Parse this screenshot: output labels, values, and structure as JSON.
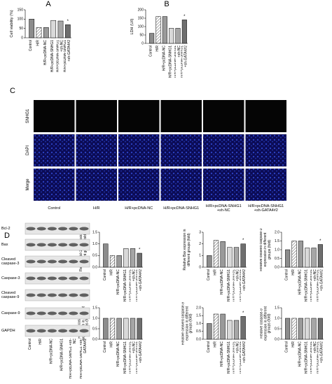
{
  "chart_data": [
    {
      "type": "bar",
      "panel_label": "A",
      "ylabel": "Cell viability (%)",
      "categories": [
        "Control",
        "H/R",
        "H/R+pcDNA-NC",
        "H/R+pcDNA-SNHG1",
        "H/R+pcDNA-SNHG1 +sh-NC",
        "H/R+pcDNA-SNHG1 +sh-GATA4#2"
      ],
      "values": [
        100,
        55,
        55,
        93,
        90,
        70
      ],
      "colors": [
        "#8c8c8c",
        "#ffffff",
        "#9a9a9a",
        "#d9d9d9",
        "#a6a6a6",
        "#6e6e6e"
      ],
      "hatch": [
        false,
        true,
        false,
        false,
        false,
        false
      ],
      "ylim": [
        0,
        150
      ],
      "yticks": [
        0,
        50,
        100,
        150
      ],
      "significance": [
        null,
        null,
        null,
        null,
        null,
        "*"
      ]
    },
    {
      "type": "bar",
      "panel_label": "B",
      "ylabel": "LDH (U/l)",
      "categories": [
        "Control",
        "H/R",
        "H/R+pcDNA-NC",
        "H/R+pcDNA-SNHG1",
        "H/R+pcDNA-SNHG1 +sh-NC",
        "H/R+pcDNA-SNHG1 +sh-GATA4#2"
      ],
      "values": [
        60,
        160,
        160,
        90,
        90,
        140
      ],
      "colors": [
        "#8c8c8c",
        "#ffffff",
        "#9a9a9a",
        "#d9d9d9",
        "#a6a6a6",
        "#6e6e6e"
      ],
      "hatch": [
        false,
        true,
        false,
        false,
        false,
        false
      ],
      "ylim": [
        0,
        200
      ],
      "yticks": [
        0,
        50,
        100,
        150,
        200
      ],
      "significance": [
        null,
        null,
        null,
        null,
        null,
        "*"
      ]
    },
    {
      "type": "bar",
      "ylabel": "Relative Bcl-2 expression in different groups (fold)",
      "categories": [
        "Control",
        "H/R",
        "H/R+pcDNA-NC",
        "H/R+pcDNA-SNHG1",
        "H/R+pcDNA-SNHG1 +sh-NC",
        "H/R+pcDNA-SNHG1 +sh-GATA4#2"
      ],
      "values": [
        1.0,
        0.5,
        0.5,
        0.8,
        0.8,
        0.6
      ],
      "colors": [
        "#8c8c8c",
        "#ffffff",
        "#9a9a9a",
        "#d9d9d9",
        "#a6a6a6",
        "#6e6e6e"
      ],
      "hatch": [
        false,
        true,
        false,
        false,
        false,
        false
      ],
      "ylim": [
        0,
        1.5
      ],
      "yticks": [
        {
          "value": 0,
          "label": "0.0"
        },
        0.5,
        {
          "value": 1,
          "label": "1.0"
        },
        1.5
      ],
      "significance": [
        null,
        null,
        null,
        null,
        null,
        "*"
      ]
    },
    {
      "type": "bar",
      "ylabel": "Relative Bax expression in different groups (fold)",
      "categories": [
        "Control",
        "H/R",
        "H/R+pcDNA-NC",
        "H/R+pcDNA-SNHG1",
        "H/R+pcDNA-SNHG1 +sh-NC",
        "H/R+pcDNA-SNHG1 +sh-GATA4#2"
      ],
      "values": [
        1.0,
        2.3,
        2.2,
        1.7,
        1.7,
        2.0
      ],
      "colors": [
        "#8c8c8c",
        "#ffffff",
        "#9a9a9a",
        "#d9d9d9",
        "#a6a6a6",
        "#6e6e6e"
      ],
      "hatch": [
        false,
        true,
        false,
        false,
        false,
        false
      ],
      "ylim": [
        0,
        3
      ],
      "yticks": [
        0,
        1,
        2,
        3
      ],
      "significance": [
        null,
        null,
        null,
        null,
        null,
        "*"
      ]
    },
    {
      "type": "bar",
      "ylabel": "Relative cleaved caspase-3 expression in different groups (fold)",
      "categories": [
        "Control",
        "H/R",
        "H/R+pcDNA-NC",
        "H/R+pcDNA-SNHG1",
        "H/R+pcDNA-SNHG1 +sh-NC",
        "H/R+pcDNA-SNHG1 +sh-GATA4#2"
      ],
      "values": [
        1.0,
        1.5,
        1.5,
        1.1,
        1.1,
        1.3
      ],
      "colors": [
        "#8c8c8c",
        "#ffffff",
        "#9a9a9a",
        "#d9d9d9",
        "#a6a6a6",
        "#6e6e6e"
      ],
      "hatch": [
        false,
        true,
        false,
        false,
        false,
        false
      ],
      "ylim": [
        0,
        2
      ],
      "yticks": [
        {
          "value": 0,
          "label": "0.0"
        },
        0.5,
        {
          "value": 1,
          "label": "1.0"
        },
        1.5,
        {
          "value": 2,
          "label": "2.0"
        }
      ],
      "significance": [
        null,
        null,
        null,
        null,
        null,
        "*"
      ]
    },
    {
      "type": "bar",
      "ylabel": "Relative caspase-3 expression in different groups (fold)",
      "categories": [
        "Control",
        "H/R",
        "H/R+pcDNA-NC",
        "H/R+pcDNA-SNHG1",
        "H/R+pcDNA-SNHG1 +sh-NC",
        "H/R+pcDNA-SNHG1 +sh-GATA4#2"
      ],
      "values": [
        1.0,
        1.0,
        1.0,
        1.0,
        1.0,
        1.0
      ],
      "colors": [
        "#8c8c8c",
        "#ffffff",
        "#9a9a9a",
        "#d9d9d9",
        "#a6a6a6",
        "#6e6e6e"
      ],
      "hatch": [
        false,
        true,
        false,
        false,
        false,
        false
      ],
      "ylim": [
        0,
        1.5
      ],
      "yticks": [
        {
          "value": 0,
          "label": "0.0"
        },
        0.5,
        {
          "value": 1,
          "label": "1.0"
        },
        1.5
      ]
    },
    {
      "type": "bar",
      "ylabel": "Relative cleaved caspase-9 expression in different groups (fold)",
      "categories": [
        "Control",
        "H/R",
        "H/R+pcDNA-NC",
        "H/R+pcDNA-SNHG1",
        "H/R+pcDNA-SNHG1 +sh-NC",
        "H/R+pcDNA-SNHG1 +sh-GATA4#2"
      ],
      "values": [
        1.0,
        1.6,
        1.6,
        1.2,
        1.2,
        1.45
      ],
      "colors": [
        "#8c8c8c",
        "#ffffff",
        "#9a9a9a",
        "#d9d9d9",
        "#a6a6a6",
        "#6e6e6e"
      ],
      "hatch": [
        false,
        true,
        false,
        false,
        false,
        false
      ],
      "ylim": [
        0,
        2
      ],
      "yticks": [
        {
          "value": 0,
          "label": "0.0"
        },
        0.5,
        {
          "value": 1,
          "label": "1.0"
        },
        1.5,
        {
          "value": 2,
          "label": "2.0"
        }
      ],
      "significance": [
        null,
        null,
        null,
        null,
        null,
        "*"
      ]
    },
    {
      "type": "bar",
      "ylabel": "Relative caspase-9 expression in different groups (fold)",
      "categories": [
        "Control",
        "H/R",
        "H/R+pcDNA-NC",
        "H/R+pcDNA-SNHG1",
        "H/R+pcDNA-SNHG1 +sh-NC",
        "H/R+pcDNA-SNHG1 +sh-GATA4#2"
      ],
      "values": [
        1.0,
        1.0,
        1.0,
        1.0,
        1.0,
        1.0
      ],
      "colors": [
        "#8c8c8c",
        "#ffffff",
        "#9a9a9a",
        "#d9d9d9",
        "#a6a6a6",
        "#6e6e6e"
      ],
      "hatch": [
        false,
        true,
        false,
        false,
        false,
        false
      ],
      "ylim": [
        0,
        1.5
      ],
      "yticks": [
        {
          "value": 0,
          "label": "0.0"
        },
        0.5,
        {
          "value": 1,
          "label": "1.0"
        },
        1.5
      ]
    }
  ],
  "panel_c": {
    "label": "C",
    "rows": [
      "SNHG1",
      "DAPI",
      "Merge"
    ],
    "columns": [
      "Control",
      "H/R",
      "H/R+pcDNA-NC",
      "H/R+pcDNA-SNHG1",
      "H/R+pcDNA-SNHG1 +sh-NC",
      "H/R+pcDNA-SNHG1 +sh-GATA4#2"
    ]
  },
  "panel_d": {
    "label": "D",
    "blots": [
      "Bcl-2",
      "Bax",
      "Cleaved caspase-3",
      "Caspase-3",
      "Cleaved caspase-9",
      "Caspase-9",
      "GAPDH"
    ],
    "columns": [
      "Control",
      "H/R",
      "H/R+pcDNA-NC",
      "H/R+pcDNA-SNHG1",
      "H/R+pcDNA-SNHG1 +sh-NC",
      "H/R+pcDNA-SNHG1 +sh-GATA4#2"
    ]
  }
}
